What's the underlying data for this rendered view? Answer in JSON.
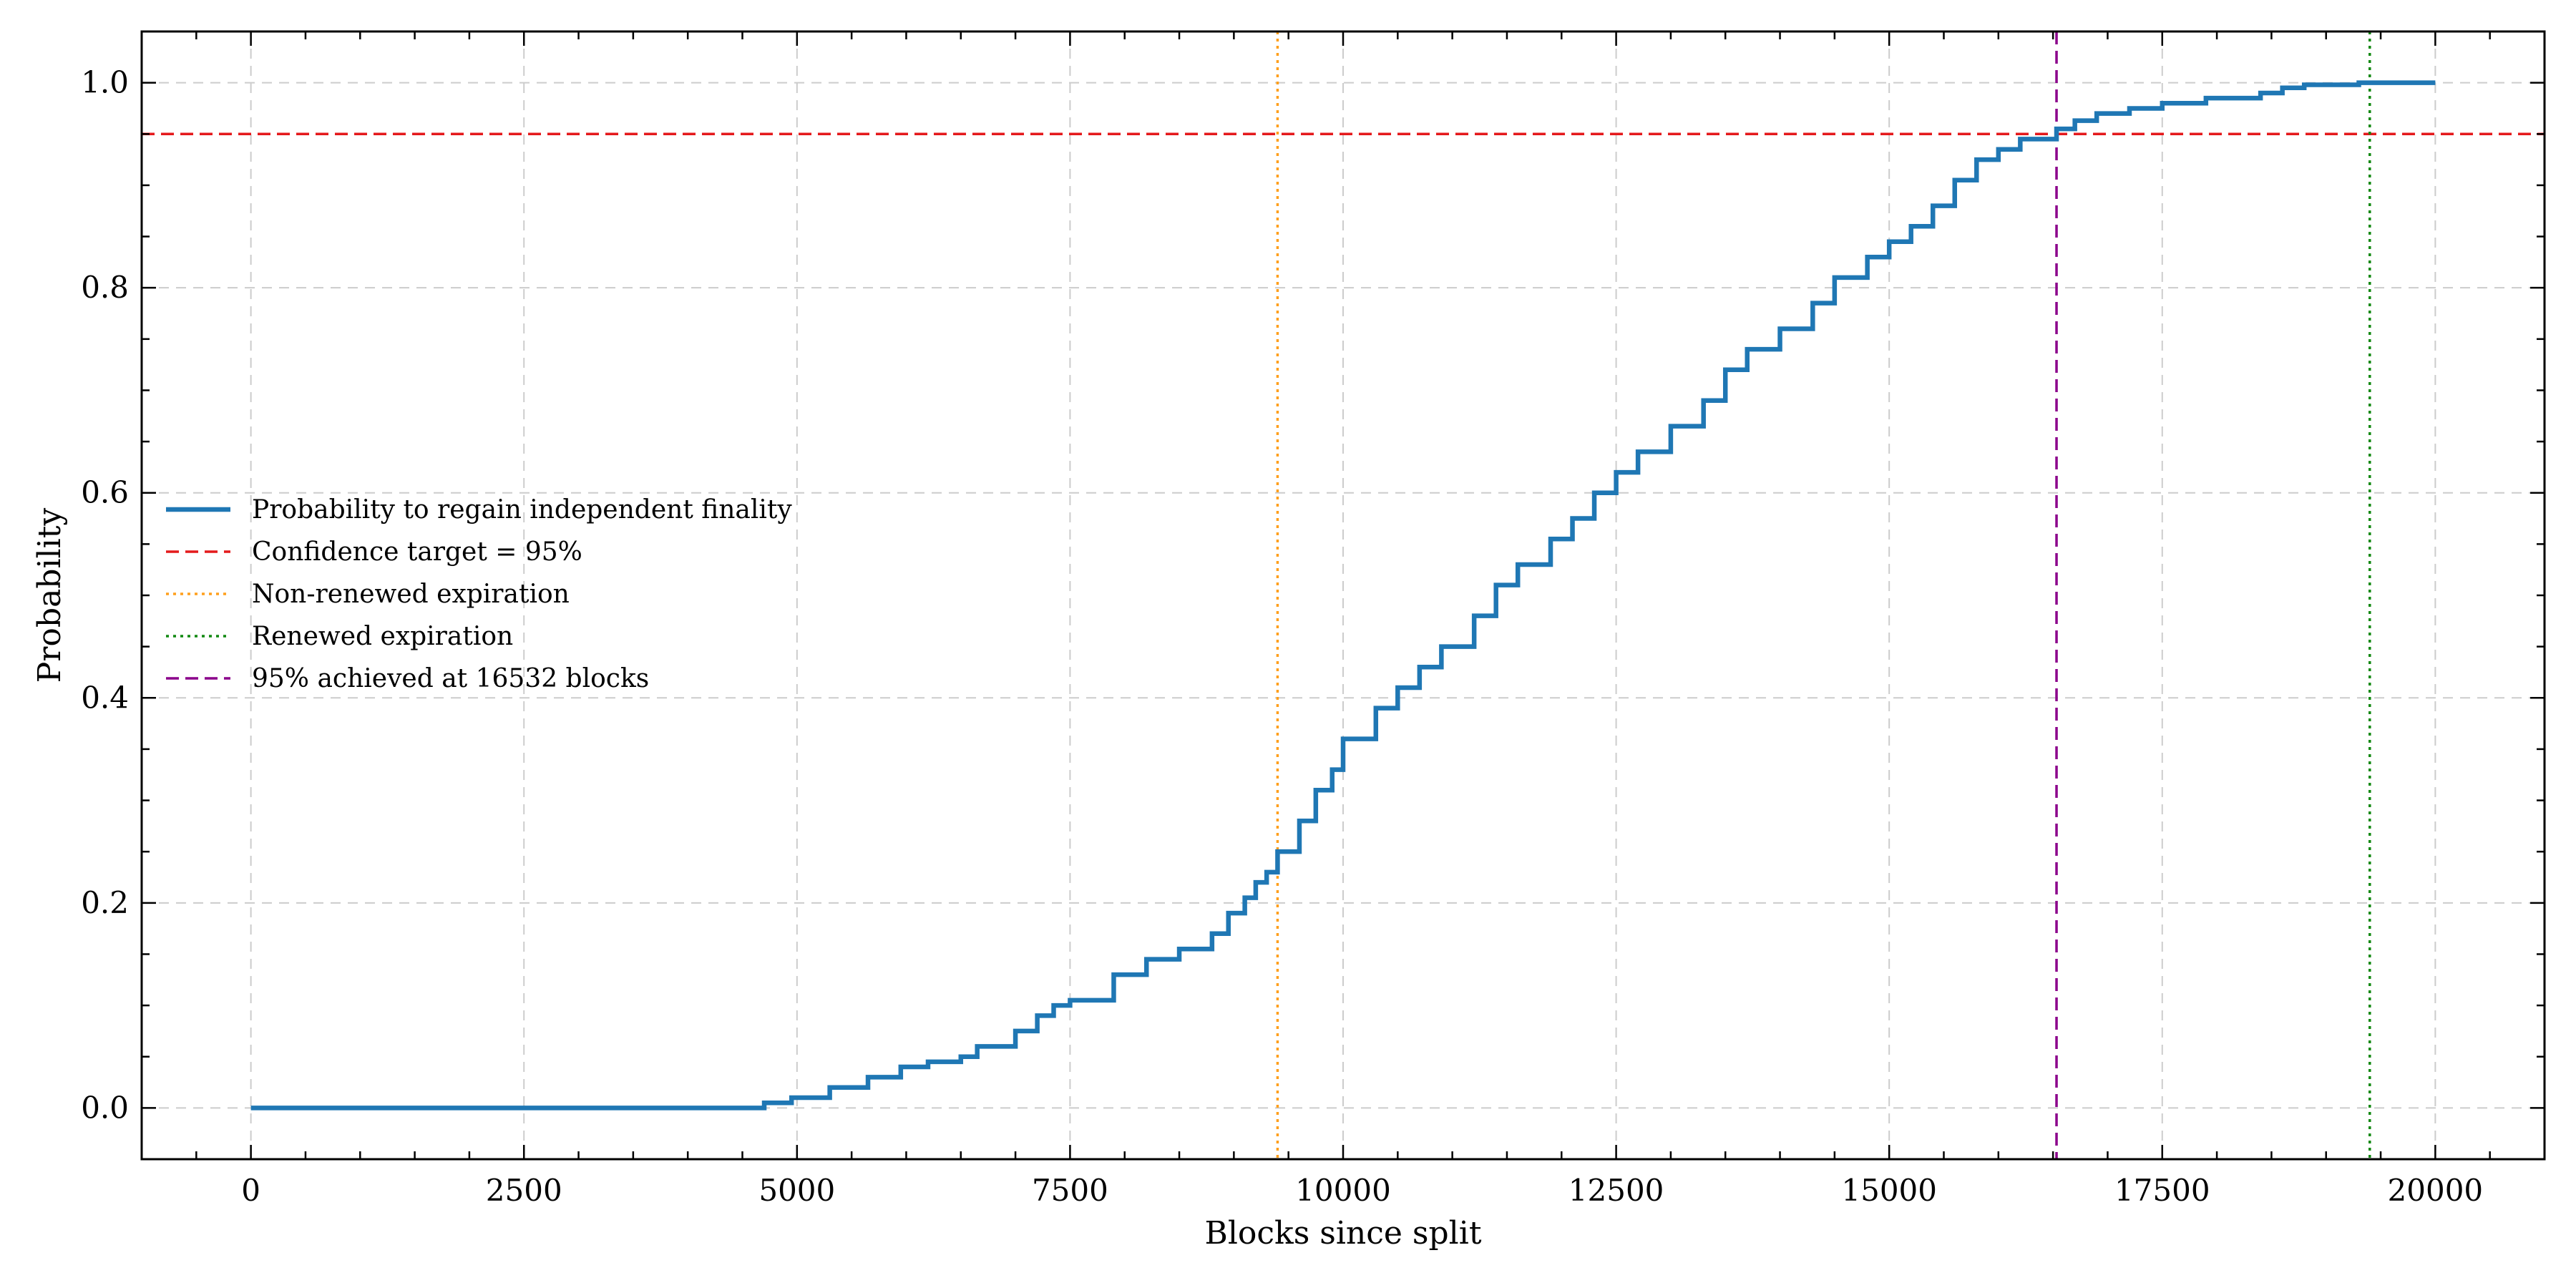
{
  "chart_data": {
    "type": "line",
    "title": "",
    "xlabel": "Blocks since split",
    "ylabel": "Probability",
    "xlim": [
      -1000,
      21000
    ],
    "ylim": [
      -0.05,
      1.05
    ],
    "x_ticks": [
      0,
      2500,
      5000,
      7500,
      10000,
      12500,
      15000,
      17500,
      20000
    ],
    "x_tick_labels": [
      "0",
      "2500",
      "5000",
      "7500",
      "10000",
      "12500",
      "15000",
      "17500",
      "20000"
    ],
    "y_ticks": [
      0.0,
      0.2,
      0.4,
      0.6,
      0.8,
      1.0
    ],
    "y_tick_labels": [
      "0.0",
      "0.2",
      "0.4",
      "0.6",
      "0.8",
      "1.0"
    ],
    "grid": true,
    "legend_position": "center-left",
    "series": [
      {
        "name": "Probability to regain independent finality",
        "style": "step",
        "color": "#1f77b4",
        "x": [
          0,
          4700,
          4950,
          5300,
          5650,
          5950,
          6200,
          6500,
          6650,
          7000,
          7200,
          7350,
          7500,
          7900,
          8200,
          8500,
          8800,
          8950,
          9100,
          9200,
          9300,
          9400,
          9600,
          9750,
          9900,
          10000,
          10300,
          10500,
          10700,
          10900,
          11200,
          11400,
          11600,
          11900,
          12100,
          12300,
          12500,
          12700,
          13000,
          13300,
          13500,
          13700,
          14000,
          14300,
          14500,
          14800,
          15000,
          15200,
          15400,
          15600,
          15800,
          16000,
          16200,
          16532,
          16700,
          16900,
          17200,
          17500,
          17900,
          18400,
          18600,
          18800,
          19300,
          20000
        ],
        "y": [
          0.0,
          0.005,
          0.01,
          0.02,
          0.03,
          0.04,
          0.045,
          0.05,
          0.06,
          0.075,
          0.09,
          0.1,
          0.105,
          0.13,
          0.145,
          0.155,
          0.17,
          0.19,
          0.205,
          0.22,
          0.23,
          0.25,
          0.28,
          0.31,
          0.33,
          0.36,
          0.39,
          0.41,
          0.43,
          0.45,
          0.48,
          0.51,
          0.53,
          0.555,
          0.575,
          0.6,
          0.62,
          0.64,
          0.665,
          0.69,
          0.72,
          0.74,
          0.76,
          0.785,
          0.81,
          0.83,
          0.845,
          0.86,
          0.88,
          0.905,
          0.925,
          0.935,
          0.945,
          0.955,
          0.963,
          0.97,
          0.975,
          0.98,
          0.985,
          0.99,
          0.995,
          0.998,
          1.0,
          1.0
        ]
      }
    ],
    "reference_lines": [
      {
        "name": "Confidence target = 95%",
        "orientation": "horizontal",
        "value": 0.95,
        "color": "#e41a1c",
        "dash": "dashed"
      },
      {
        "name": "Non-renewed expiration",
        "orientation": "vertical",
        "value": 9400,
        "color": "#ff9f1c",
        "dash": "dotted"
      },
      {
        "name": "Renewed expiration",
        "orientation": "vertical",
        "value": 19400,
        "color": "#118811",
        "dash": "dotted"
      },
      {
        "name": "95% achieved at 16532 blocks",
        "orientation": "vertical",
        "value": 16532,
        "color": "#8b008b",
        "dash": "dashed"
      }
    ]
  }
}
